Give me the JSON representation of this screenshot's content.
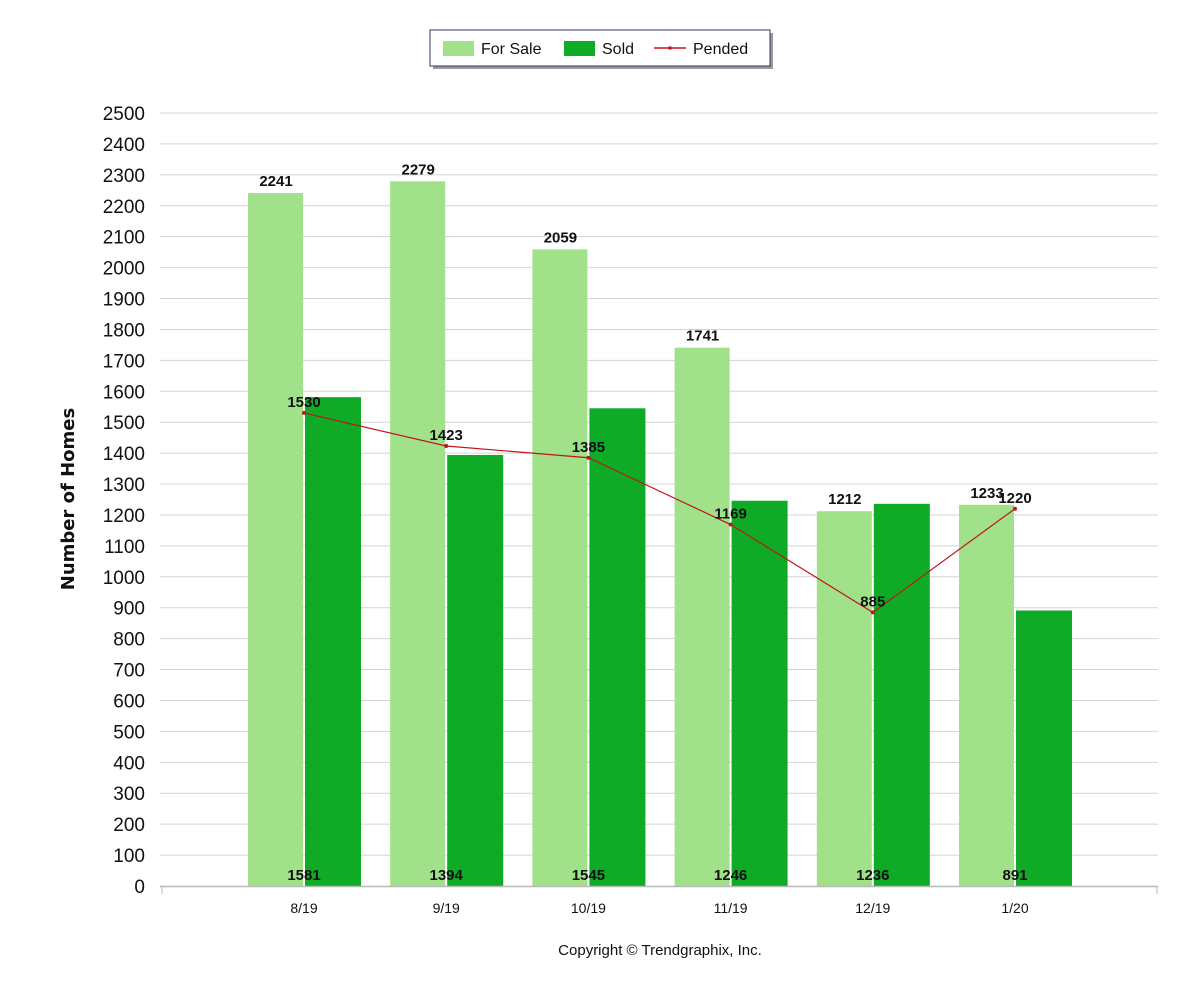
{
  "chart_data": {
    "type": "bar",
    "categories": [
      "8/19",
      "9/19",
      "10/19",
      "11/19",
      "12/19",
      "1/20"
    ],
    "series": [
      {
        "name": "For Sale",
        "kind": "bar",
        "color": "#a0e189",
        "values": [
          2241,
          2279,
          2059,
          1741,
          1212,
          1233
        ]
      },
      {
        "name": "Sold",
        "kind": "bar",
        "color": "#0faa26",
        "values": [
          1581,
          1394,
          1545,
          1246,
          1236,
          891
        ]
      },
      {
        "name": "Pended",
        "kind": "line",
        "color": "#c0151b",
        "values": [
          1530,
          1423,
          1385,
          1169,
          885,
          1220
        ]
      }
    ],
    "ylabel": "Number of Homes",
    "xlabel": "",
    "ylim": [
      0,
      2500
    ],
    "ytick_step": 100,
    "grid": true,
    "legend": "top-center"
  },
  "copyright": "Copyright © Trendgraphix, Inc."
}
